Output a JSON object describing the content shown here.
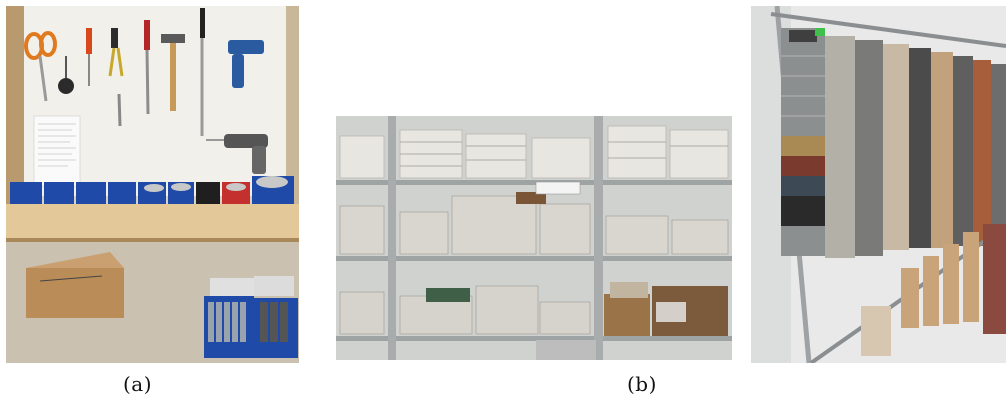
{
  "figure": {
    "captions": {
      "a": "(a)",
      "b": "(b)"
    }
  }
}
